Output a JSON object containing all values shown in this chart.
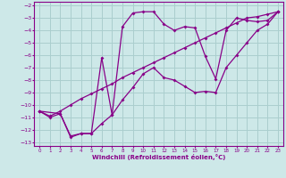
{
  "xlabel": "Windchill (Refroidissement éolien,°C)",
  "bg_color": "#cde8e8",
  "grid_color": "#aacece",
  "line_color": "#880088",
  "xlim": [
    -0.5,
    23.5
  ],
  "ylim": [
    -13.3,
    -1.7
  ],
  "xticks": [
    0,
    1,
    2,
    3,
    4,
    5,
    6,
    7,
    8,
    9,
    10,
    11,
    12,
    13,
    14,
    15,
    16,
    17,
    18,
    19,
    20,
    21,
    22,
    23
  ],
  "yticks": [
    -13,
    -12,
    -11,
    -10,
    -9,
    -8,
    -7,
    -6,
    -5,
    -4,
    -3,
    -2
  ],
  "line1_x": [
    0,
    1,
    2,
    3,
    4,
    5,
    6,
    7,
    8,
    9,
    10,
    11,
    12,
    13,
    14,
    15,
    16,
    17,
    18,
    19,
    20,
    21,
    22,
    23
  ],
  "line1_y": [
    -10.5,
    -11.0,
    -10.7,
    -12.5,
    -12.3,
    -12.3,
    -6.2,
    -10.8,
    -3.7,
    -2.6,
    -2.5,
    -2.5,
    -3.5,
    -4.0,
    -3.7,
    -3.8,
    -6.1,
    -7.9,
    -4.0,
    -3.0,
    -3.2,
    -3.3,
    -3.2,
    -2.5
  ],
  "line2_x": [
    0,
    1,
    2,
    3,
    4,
    5,
    6,
    7,
    8,
    9,
    10,
    11,
    12,
    13,
    14,
    15,
    16,
    17,
    18,
    19,
    20,
    21,
    22,
    23
  ],
  "line2_y": [
    -10.5,
    -10.9,
    -10.5,
    -10.0,
    -9.5,
    -9.1,
    -8.7,
    -8.3,
    -7.8,
    -7.4,
    -7.0,
    -6.6,
    -6.2,
    -5.8,
    -5.4,
    -5.0,
    -4.6,
    -4.2,
    -3.8,
    -3.4,
    -3.0,
    -2.9,
    -2.7,
    -2.5
  ],
  "line3_x": [
    0,
    2,
    3,
    4,
    5,
    6,
    7,
    8,
    9,
    10,
    11,
    12,
    13,
    14,
    15,
    16,
    17,
    18,
    19,
    20,
    21,
    22,
    23
  ],
  "line3_y": [
    -10.5,
    -10.7,
    -12.6,
    -12.3,
    -12.3,
    -11.5,
    -10.8,
    -9.6,
    -8.6,
    -7.5,
    -7.0,
    -7.8,
    -8.0,
    -8.5,
    -9.0,
    -8.9,
    -9.0,
    -7.0,
    -6.0,
    -5.0,
    -4.0,
    -3.5,
    -2.5
  ]
}
